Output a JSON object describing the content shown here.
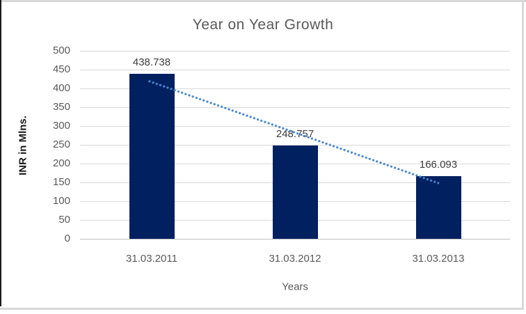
{
  "frame": {
    "background": "#ffffff",
    "border_color": "#d8d8d8",
    "left_edge_color": "#1b1b1b"
  },
  "chart_data": {
    "type": "bar",
    "title": "Year on Year Growth",
    "categories": [
      "31.03.2011",
      "31.03.2012",
      "31.03.2013"
    ],
    "values": [
      438.738,
      248.757,
      166.093
    ],
    "data_labels": [
      "438.738",
      "248.757",
      "166.093"
    ],
    "xlabel": "Years",
    "ylabel": "INR in Mlns.",
    "ylim": [
      0,
      500
    ],
    "ytick_step": 50,
    "yticks": [
      "500",
      "450",
      "400",
      "350",
      "300",
      "250",
      "200",
      "150",
      "100",
      "50",
      "0"
    ],
    "grid": true,
    "legend": "none",
    "bar_color": "#002060",
    "trendline": {
      "type": "linear",
      "style": "dotted",
      "color": "#4a86c8"
    },
    "title_color": "#595959",
    "axis_text_color": "#595959",
    "data_label_color": "#3d3d3d",
    "gridline_color": "#d9d9d9"
  }
}
